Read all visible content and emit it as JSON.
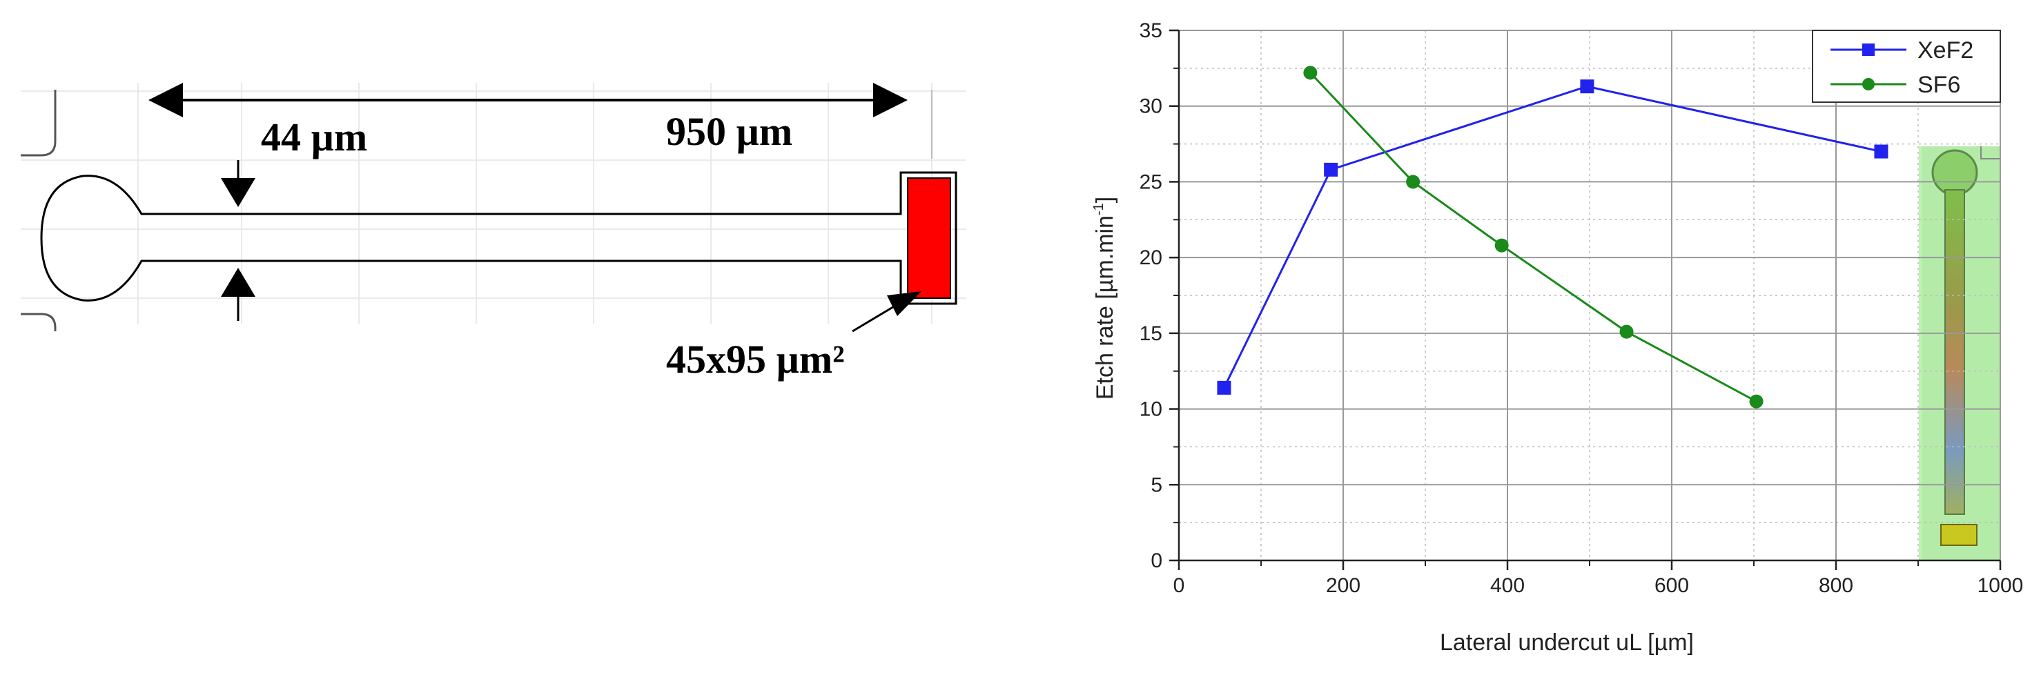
{
  "diagram": {
    "length_label": "950 µm",
    "width_label": "44 µm",
    "pad_label": "45x95 µm²",
    "pad_color": "#ff0000"
  },
  "chart_data": {
    "type": "line",
    "xlabel": "Lateral undercut uL [µm]",
    "ylabel_main": "Etch rate [µm.min",
    "ylabel_sup": "-1",
    "ylabel_end": "]",
    "xlim": [
      0,
      1000
    ],
    "ylim": [
      0,
      35
    ],
    "xticks": [
      0,
      200,
      400,
      600,
      800,
      1000
    ],
    "yticks": [
      0,
      5,
      10,
      15,
      20,
      25,
      30,
      35
    ],
    "grid": true,
    "legend_position": "top-right",
    "series": [
      {
        "name": "XeF2",
        "color": "#2222ee",
        "marker": "square",
        "x": [
          55,
          185,
          497,
          855
        ],
        "y": [
          11.4,
          25.8,
          31.3,
          27.0
        ]
      },
      {
        "name": "SF6",
        "color": "#1a8a1a",
        "marker": "circle",
        "x": [
          160,
          285,
          393,
          545,
          703
        ],
        "y": [
          32.2,
          25.0,
          20.8,
          15.1,
          10.5
        ]
      }
    ],
    "inset_image": "micro-channel-photo"
  }
}
